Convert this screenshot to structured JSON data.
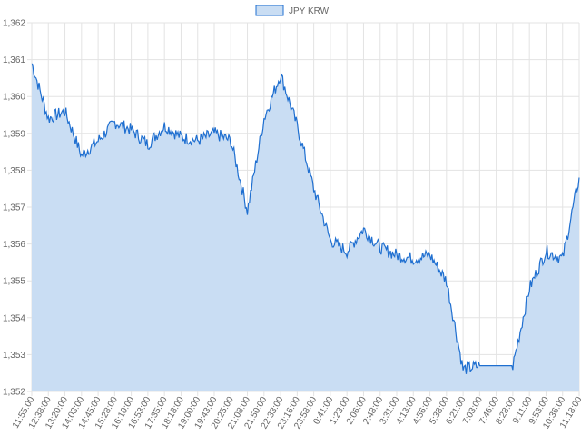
{
  "chart_data": {
    "type": "area",
    "title": "",
    "xlabel": "",
    "ylabel": "",
    "legend": {
      "position": "top",
      "entries": [
        "JPY KRW"
      ]
    },
    "grid": true,
    "ylim": [
      1352,
      1362
    ],
    "yticks": [
      "1,352",
      "1,353",
      "1,354",
      "1,355",
      "1,356",
      "1,357",
      "1,358",
      "1,359",
      "1,360",
      "1,361",
      "1,362"
    ],
    "x": [
      "11:55:00",
      "12:38:00",
      "13:20:00",
      "14:03:00",
      "14:45:00",
      "15:28:00",
      "16:10:00",
      "16:53:00",
      "17:35:00",
      "18:18:00",
      "19:00:00",
      "19:43:00",
      "20:25:00",
      "21:08:00",
      "21:50:00",
      "22:33:00",
      "23:16:00",
      "23:58:00",
      "0:41:00",
      "1:23:00",
      "2:06:00",
      "2:48:00",
      "3:31:00",
      "4:13:00",
      "4:56:00",
      "5:38:00",
      "6:21:00",
      "7:03:00",
      "7:46:00",
      "8:28:00",
      "9:11:00",
      "9:53:00",
      "10:36:00",
      "11:18:00"
    ],
    "series": [
      {
        "name": "JPY KRW",
        "color": "#1f6fd0",
        "fill": "#c9ddf3",
        "values": [
          1360.9,
          1359.4,
          1359.6,
          1358.4,
          1358.8,
          1359.3,
          1359.1,
          1358.7,
          1359.2,
          1358.9,
          1358.8,
          1359.0,
          1358.8,
          1356.9,
          1359.4,
          1360.6,
          1359.2,
          1357.5,
          1356.1,
          1355.8,
          1356.4,
          1355.9,
          1355.7,
          1355.6,
          1355.7,
          1355.0,
          1352.6,
          1352.7,
          1352.7,
          1352.7,
          1354.8,
          1355.8,
          1355.6,
          1357.8
        ]
      }
    ]
  }
}
